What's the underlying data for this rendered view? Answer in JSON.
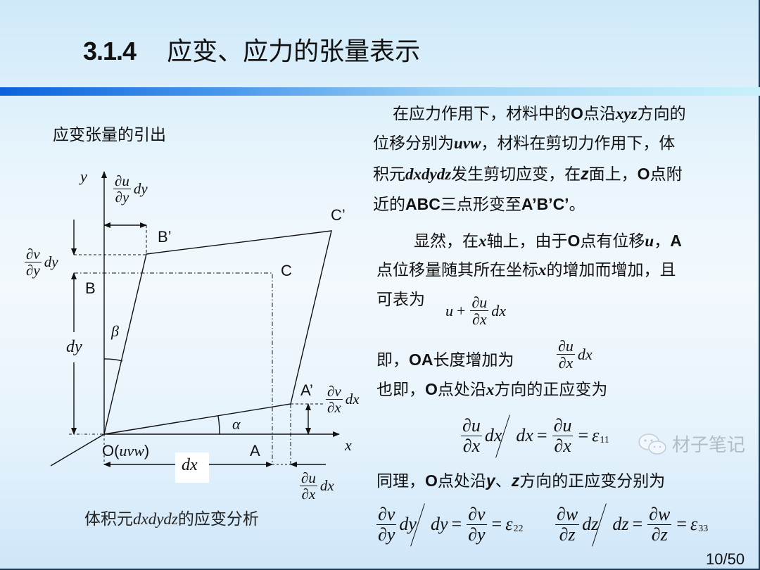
{
  "slide": {
    "title_number": "3.1.4",
    "title_text": "应变、应力的张量表示",
    "subheading": "应变张量的引出",
    "caption": [
      {
        "t": "体积元"
      },
      {
        "t": "dxdydz",
        "s": "i"
      },
      {
        "t": "的应变分析"
      }
    ],
    "page_number": "10/50",
    "watermark": "材子笔记",
    "colors": {
      "accent_bar_start": "#0a62dc",
      "accent_bar_end": "#c9f1fb",
      "background": "#e9f5fc"
    }
  },
  "diagram": {
    "labels": {
      "y_axis": "y",
      "x_axis": "x",
      "alpha": "α",
      "beta": "β",
      "B_prime": "B’",
      "C_prime": "C’",
      "C": "C",
      "B": "B",
      "A_prime": "A’",
      "A": "A",
      "origin": "O(",
      "origin_vars": "uvw",
      "origin_close": ")",
      "dx": "dx",
      "dy": "dy"
    },
    "fractions": {
      "du_dy_dy": {
        "num": "∂u",
        "den": "∂y",
        "tail": "dy"
      },
      "dv_dy_dy": {
        "num": "∂v",
        "den": "∂y",
        "tail": "dy"
      },
      "dv_dx_dx": {
        "num": "∂v",
        "den": "∂x",
        "tail": "dx"
      },
      "du_dx_dx": {
        "num": "∂u",
        "den": "∂x",
        "tail": "dx"
      }
    }
  },
  "text": {
    "lines": [
      [
        {
          "t": "在应力作用下，材料中的"
        },
        {
          "t": "O",
          "s": "b"
        },
        {
          "t": "点沿"
        },
        {
          "t": "xyz",
          "s": "bi"
        },
        {
          "t": "方向的"
        }
      ],
      [
        {
          "t": "位移分别为"
        },
        {
          "t": "uvw",
          "s": "bi"
        },
        {
          "t": "，材料在剪切力作用下，体"
        }
      ],
      [
        {
          "t": "积元"
        },
        {
          "t": "dxdydz",
          "s": "bi"
        },
        {
          "t": "发生剪切应变，在"
        },
        {
          "t": "z",
          "s": "sb"
        },
        {
          "t": "面上，"
        },
        {
          "t": "O",
          "s": "b"
        },
        {
          "t": "点附"
        }
      ],
      [
        {
          "t": "近的"
        },
        {
          "t": "ABC",
          "s": "b"
        },
        {
          "t": "三点形变至"
        },
        {
          "t": "A’B’C’",
          "s": "b"
        },
        {
          "t": "。"
        }
      ],
      [
        {
          "t": "显然，在"
        },
        {
          "t": "x",
          "s": "bi"
        },
        {
          "t": "轴上，由于"
        },
        {
          "t": "O",
          "s": "b"
        },
        {
          "t": "点有位移"
        },
        {
          "t": "u",
          "s": "bi"
        },
        {
          "t": "，"
        },
        {
          "t": "A",
          "s": "b"
        }
      ],
      [
        {
          "t": "点位移量随其所在坐标"
        },
        {
          "t": "x",
          "s": "bi"
        },
        {
          "t": "的增加而增加，且"
        }
      ],
      [
        {
          "t": "可表为"
        }
      ],
      [
        {
          "t": "即，"
        },
        {
          "t": "OA",
          "s": "b"
        },
        {
          "t": "长度增加为"
        }
      ],
      [
        {
          "t": "也即，"
        },
        {
          "t": "O",
          "s": "b"
        },
        {
          "t": "点处沿"
        },
        {
          "t": "x",
          "s": "bi"
        },
        {
          "t": "方向的正应变为"
        }
      ],
      [
        {
          "t": "同理，"
        },
        {
          "t": "O",
          "s": "b"
        },
        {
          "t": "点处沿"
        },
        {
          "t": "y",
          "s": "sb"
        },
        {
          "t": "、"
        },
        {
          "t": "z",
          "s": "sb"
        },
        {
          "t": "方向的正应变分别为"
        }
      ]
    ],
    "formulas": {
      "a_displacement": [
        {
          "t": "u"
        },
        {
          "op": "+"
        },
        {
          "frac": [
            "∂u",
            "∂x"
          ]
        },
        {
          "t": "dx"
        }
      ],
      "oa_increase": [
        {
          "frac": [
            "∂u",
            "∂x"
          ]
        },
        {
          "t": "dx"
        }
      ],
      "eps11": [
        {
          "frac": [
            "∂u",
            "∂x"
          ]
        },
        {
          "t": "dx"
        },
        {
          "slash": true
        },
        {
          "t": "dx"
        },
        {
          "op": "="
        },
        {
          "frac": [
            "∂u",
            "∂x"
          ]
        },
        {
          "op": "="
        },
        {
          "t": "ε"
        },
        {
          "sub": "11"
        }
      ],
      "eps22": [
        {
          "frac": [
            "∂v",
            "∂y"
          ]
        },
        {
          "t": "dy"
        },
        {
          "slash": true
        },
        {
          "t": "dy"
        },
        {
          "op": "="
        },
        {
          "frac": [
            "∂v",
            "∂y"
          ]
        },
        {
          "op": "="
        },
        {
          "t": "ε"
        },
        {
          "sub": "22"
        }
      ],
      "eps33": [
        {
          "frac": [
            "∂w",
            "∂z"
          ]
        },
        {
          "t": "dz"
        },
        {
          "slash": true
        },
        {
          "t": "dz"
        },
        {
          "op": "="
        },
        {
          "frac": [
            "∂w",
            "∂z"
          ]
        },
        {
          "op": "="
        },
        {
          "t": "ε"
        },
        {
          "sub": "33"
        }
      ]
    }
  }
}
